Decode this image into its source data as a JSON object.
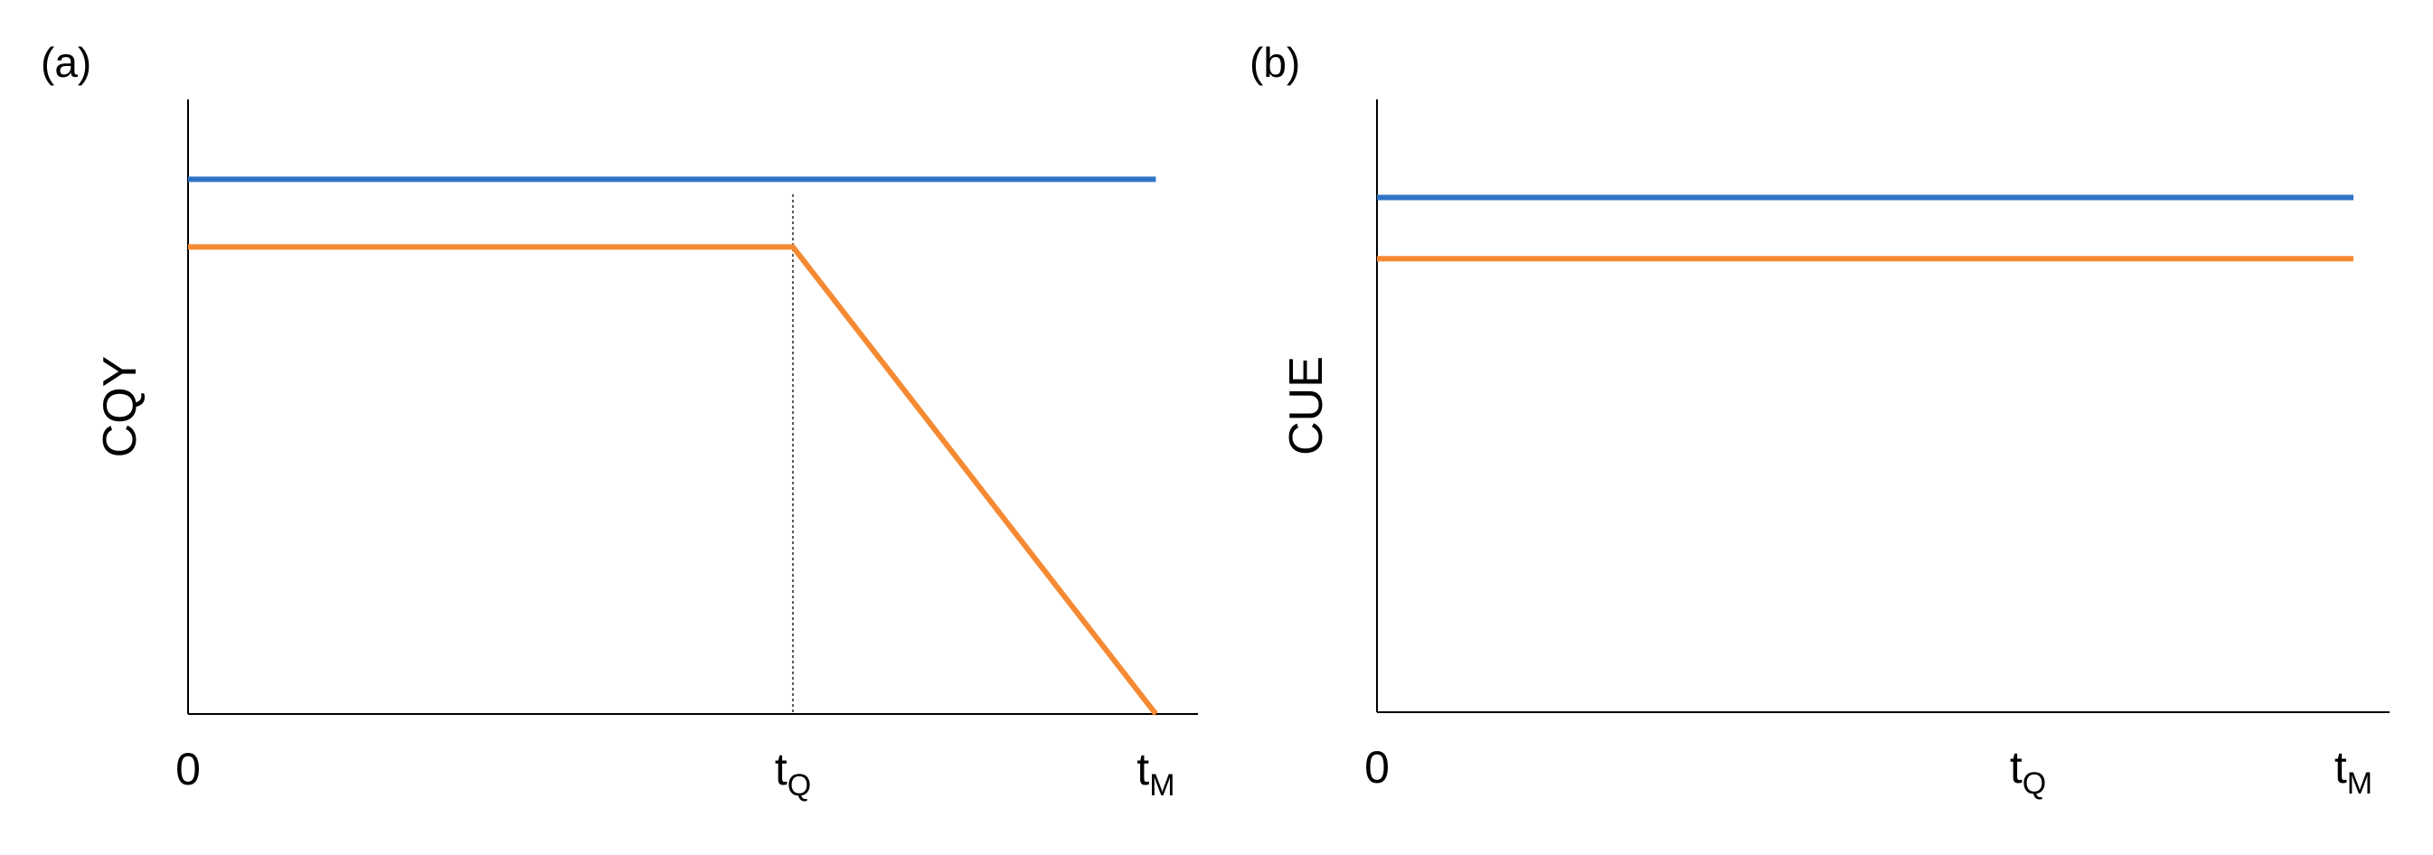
{
  "chart_data": [
    {
      "panel_label": "(a)",
      "type": "line",
      "ylabel": "CQY",
      "x_ticks": [
        {
          "pos": 0,
          "main": "0",
          "sub": ""
        },
        {
          "pos": 1,
          "main": "t",
          "sub": "Q"
        },
        {
          "pos": 1.6,
          "main": "t",
          "sub": "M"
        }
      ],
      "xlim": [
        0,
        1.68
      ],
      "ylim": [
        0,
        1
      ],
      "grid": false,
      "vline": {
        "x": 1,
        "style": "dotted"
      },
      "series": [
        {
          "color": "#2f73c7",
          "x": [
            0,
            1.6
          ],
          "y": [
            0.87,
            0.87
          ]
        },
        {
          "color": "#f58a33",
          "x": [
            0,
            1,
            1.6
          ],
          "y": [
            0.76,
            0.76,
            0
          ]
        }
      ]
    },
    {
      "panel_label": "(b)",
      "type": "line",
      "ylabel": "CUE",
      "x_ticks": [
        {
          "pos": 0,
          "main": "0",
          "sub": ""
        },
        {
          "pos": 1,
          "main": "t",
          "sub": "Q"
        },
        {
          "pos": 1.5,
          "main": "t",
          "sub": "M"
        }
      ],
      "xlim": [
        0,
        1.66
      ],
      "ylim": [
        0,
        1
      ],
      "grid": false,
      "series": [
        {
          "color": "#2f73c7",
          "x": [
            0,
            1.5
          ],
          "y": [
            0.84,
            0.84
          ]
        },
        {
          "color": "#f58a33",
          "x": [
            0,
            1.5
          ],
          "y": [
            0.74,
            0.74
          ]
        }
      ]
    }
  ]
}
